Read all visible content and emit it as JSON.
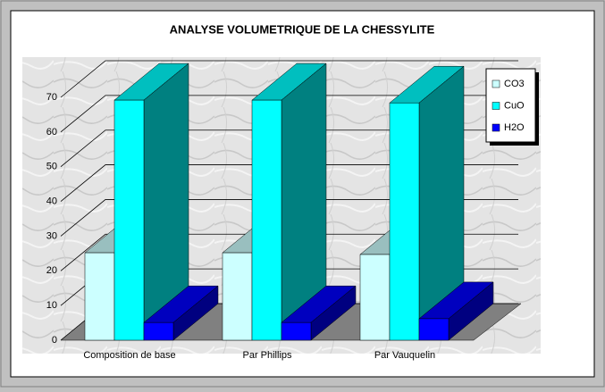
{
  "chart_data": {
    "type": "bar3d",
    "title": "ANALYSE VOLUMETRIQUE DE LA CHESSYLITE",
    "categories": [
      "Composition de base",
      "Par Phillips",
      "Par Vauquelin"
    ],
    "series": [
      {
        "name": "CO3",
        "color": "#ccffff",
        "values": [
          25.2,
          25.2,
          24.7
        ]
      },
      {
        "name": "CuO",
        "color": "#00ffff",
        "values": [
          69.2,
          69.2,
          68.4
        ]
      },
      {
        "name": "H2O",
        "color": "#0000ff",
        "values": [
          5.1,
          5.1,
          6.2
        ]
      }
    ],
    "ylim": [
      0,
      70
    ],
    "yticks": [
      0,
      10,
      20,
      30,
      40,
      50,
      60,
      70
    ],
    "grid": true,
    "legend": "top-right"
  }
}
